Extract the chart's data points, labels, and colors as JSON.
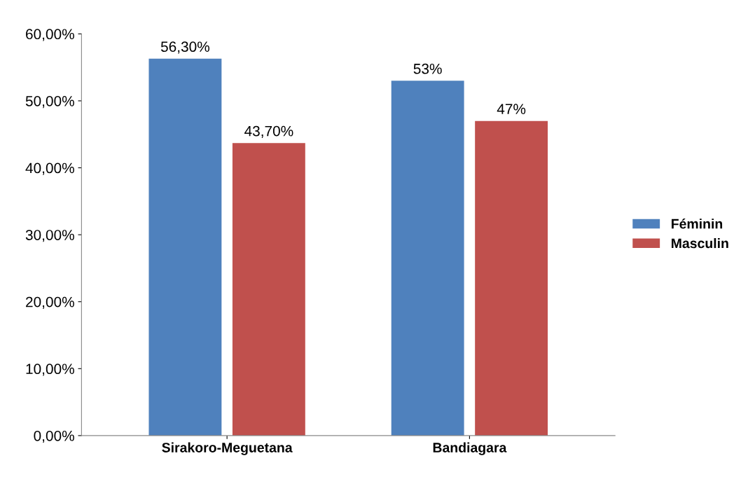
{
  "chart_data": {
    "type": "bar",
    "categories": [
      "Sirakoro-Meguetana",
      "Bandiagara"
    ],
    "series": [
      {
        "name": "Féminin",
        "color": "#4f81bd",
        "values": [
          56.3,
          53
        ],
        "value_labels": [
          "56,30%",
          "53%"
        ]
      },
      {
        "name": "Masculin",
        "color": "#c0504d",
        "values": [
          43.7,
          47
        ],
        "value_labels": [
          "43,70%",
          "47%"
        ]
      }
    ],
    "ylim": [
      0,
      60
    ],
    "yticks": [
      {
        "value": 0,
        "label": "0,00%"
      },
      {
        "value": 10,
        "label": "10,00%"
      },
      {
        "value": 20,
        "label": "20,00%"
      },
      {
        "value": 30,
        "label": "30,00%"
      },
      {
        "value": 40,
        "label": "40,00%"
      },
      {
        "value": 50,
        "label": "50,00%"
      },
      {
        "value": 60,
        "label": "60,00%"
      }
    ],
    "grid": false,
    "legend": "right"
  }
}
